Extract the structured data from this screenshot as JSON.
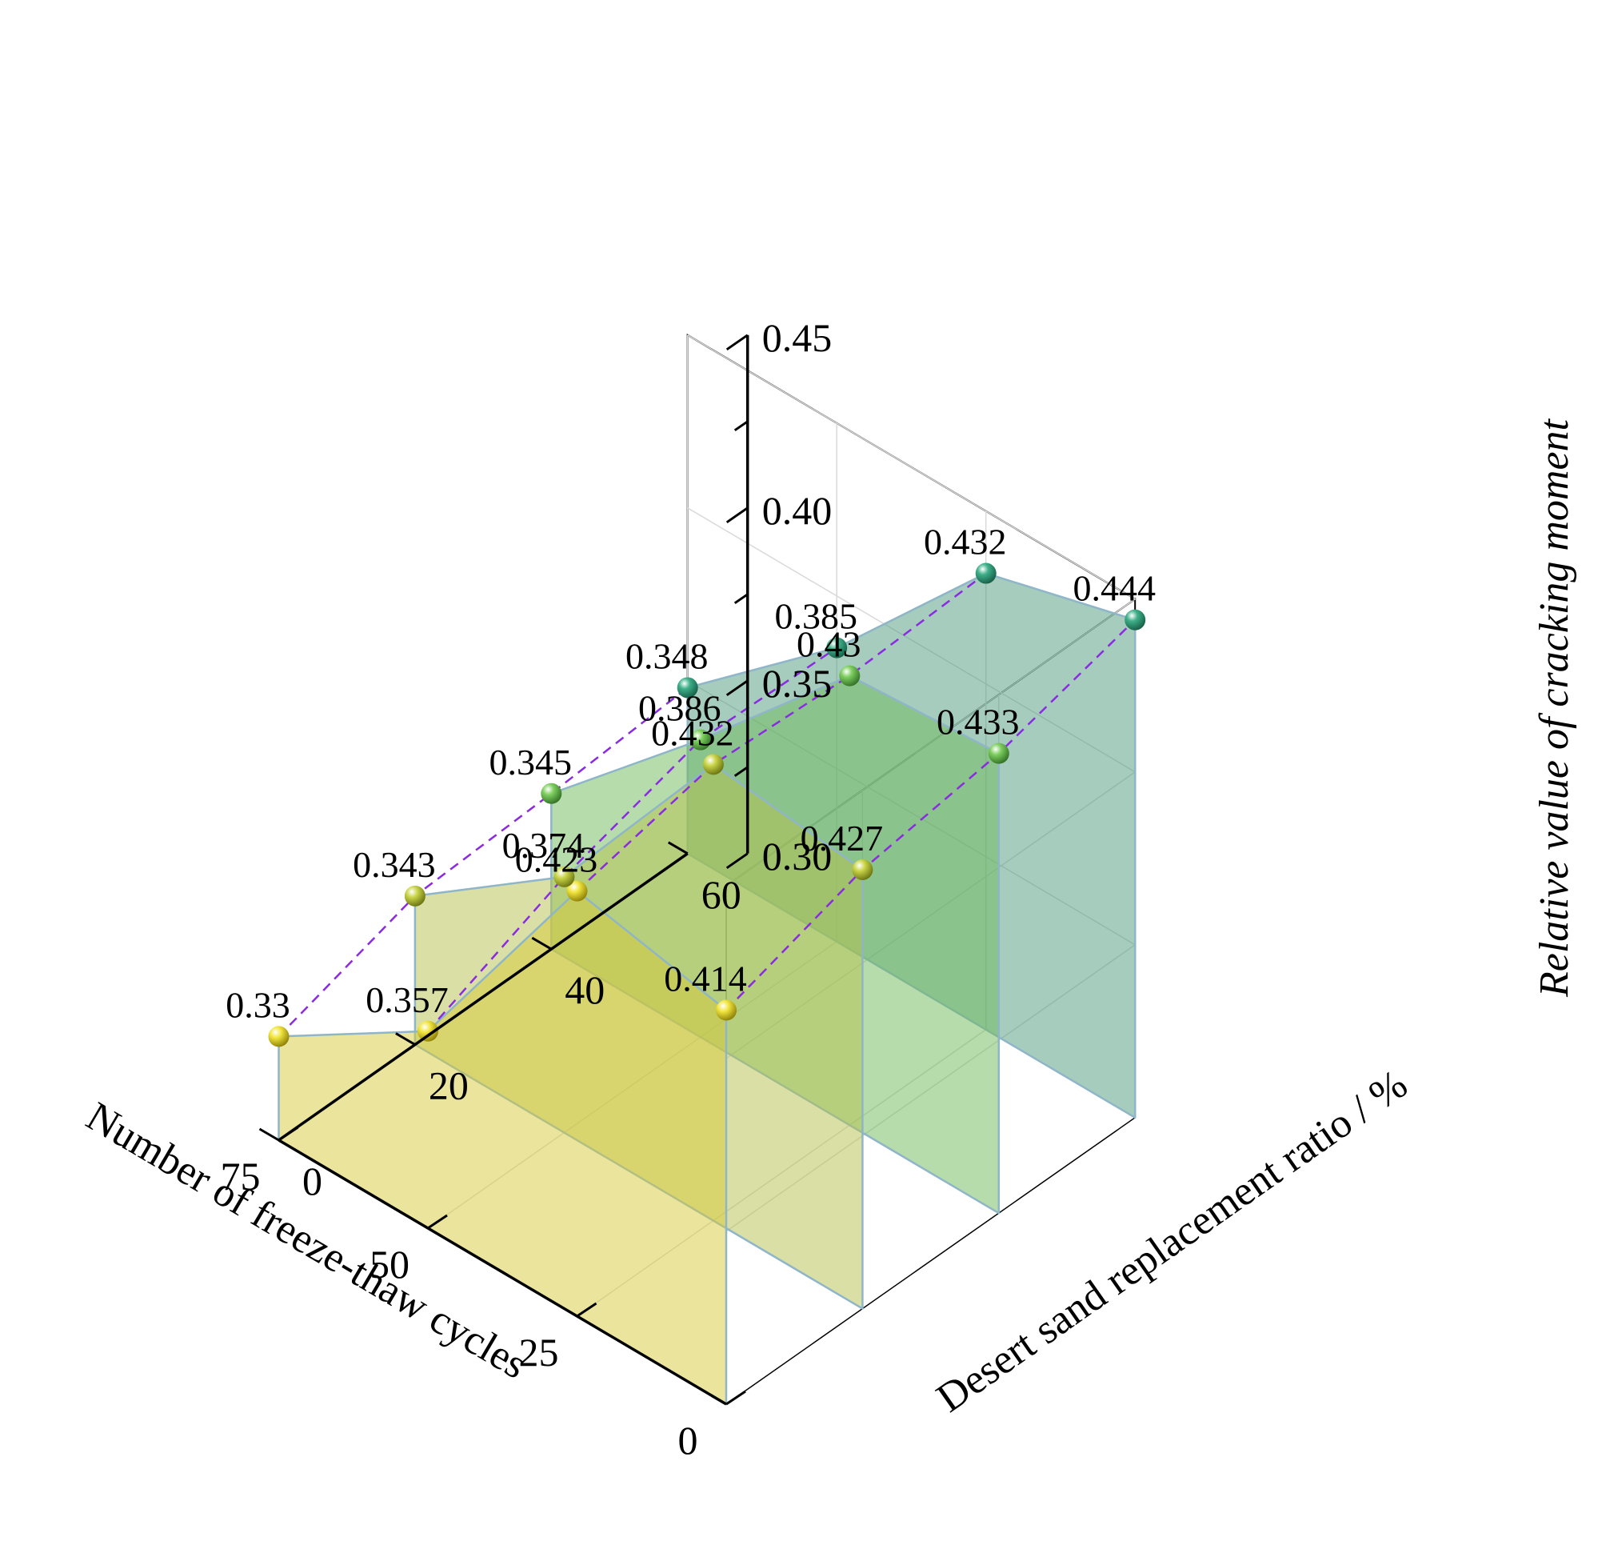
{
  "chart_data": {
    "type": "3d-ribbon",
    "x_axis": {
      "label": "Number of freeze-thaw cycles",
      "ticks": [
        "0",
        "25",
        "50",
        "75"
      ],
      "range": [
        0,
        75
      ]
    },
    "y_axis": {
      "label": "Desert sand replacement ratio / %",
      "ticks": [
        "0",
        "20",
        "40",
        "60"
      ],
      "range": [
        0,
        60
      ]
    },
    "z_axis": {
      "label": "Relative value of cracking moment",
      "ticks": [
        "0.30",
        "0.35",
        "0.40",
        "0.45"
      ],
      "range": [
        0.3,
        0.45
      ]
    },
    "grid": true,
    "colors": {
      "ratio_0": "#d6c93a",
      "ratio_20": "#b5c24c",
      "ratio_40": "#6fb95a",
      "ratio_60": "#4e9a7d",
      "connector": "#8a2be2"
    },
    "series": [
      {
        "replacement_ratio": 0,
        "x": [
          0,
          25,
          50,
          75
        ],
        "values": [
          0.414,
          0.423,
          0.357,
          0.33
        ],
        "labels": [
          "0.414",
          "0.423",
          "0.357",
          "0.33"
        ]
      },
      {
        "replacement_ratio": 20,
        "x": [
          0,
          25,
          50,
          75
        ],
        "values": [
          0.427,
          0.432,
          0.374,
          0.343
        ],
        "labels": [
          "0.427",
          "0.432",
          "0.374",
          "0.343"
        ]
      },
      {
        "replacement_ratio": 40,
        "x": [
          0,
          25,
          50,
          75
        ],
        "values": [
          0.433,
          0.43,
          0.386,
          0.345
        ],
        "labels": [
          "0.433",
          "0.43",
          "0.386",
          "0.345"
        ]
      },
      {
        "replacement_ratio": 60,
        "x": [
          0,
          25,
          50,
          75
        ],
        "values": [
          0.444,
          0.432,
          0.385,
          0.348
        ],
        "labels": [
          "0.444",
          "0.432",
          "0.385",
          "0.348"
        ]
      }
    ]
  }
}
